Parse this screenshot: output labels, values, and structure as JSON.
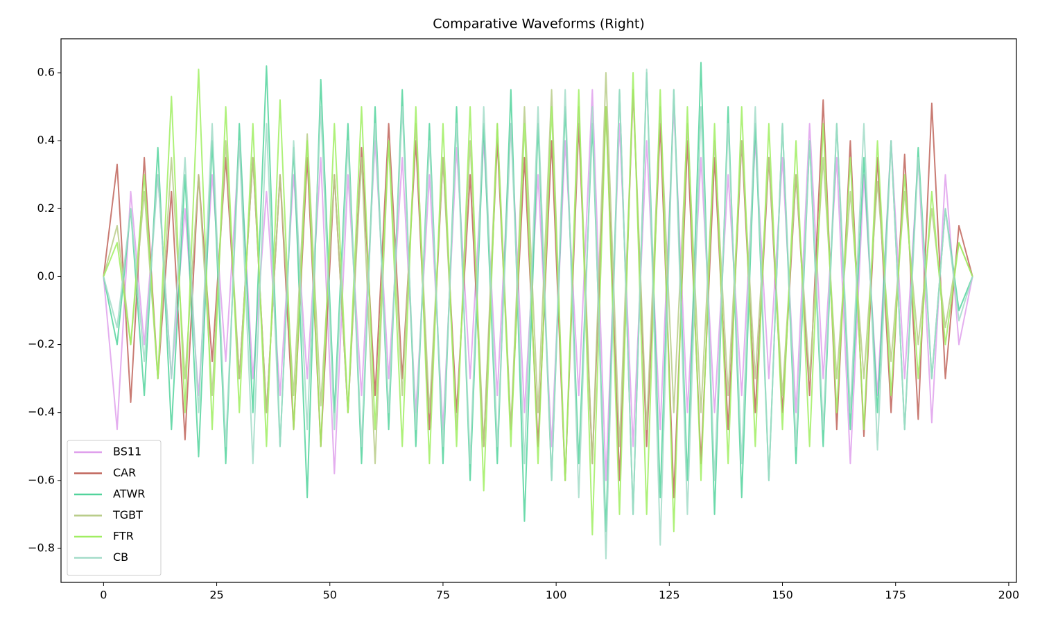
{
  "chart_data": {
    "type": "line",
    "title": "Comparative Waveforms (Right)",
    "x": [
      0,
      3,
      6,
      9,
      12,
      15,
      18,
      21,
      24,
      27,
      30,
      33,
      36,
      39,
      42,
      45,
      48,
      51,
      54,
      57,
      60,
      63,
      66,
      69,
      72,
      75,
      78,
      81,
      84,
      87,
      90,
      93,
      96,
      99,
      102,
      105,
      108,
      111,
      114,
      117,
      120,
      123,
      126,
      129,
      132,
      135,
      138,
      141,
      144,
      147,
      150,
      153,
      156,
      159,
      162,
      165,
      168,
      171,
      174,
      177,
      180,
      183,
      186,
      189,
      192
    ],
    "series": [
      {
        "name": "BS11",
        "color": "#dfa0ec",
        "values": [
          0,
          -0.45,
          0.25,
          -0.2,
          0.3,
          -0.3,
          0.2,
          -0.35,
          0.3,
          -0.25,
          0.4,
          -0.3,
          0.25,
          -0.35,
          0.3,
          -0.3,
          0.35,
          -0.58,
          0.3,
          -0.35,
          0.4,
          -0.3,
          0.35,
          -0.4,
          0.3,
          -0.45,
          0.38,
          -0.3,
          0.4,
          -0.35,
          0.45,
          -0.4,
          0.3,
          -0.5,
          0.4,
          -0.35,
          0.55,
          -0.6,
          0.45,
          -0.5,
          0.4,
          -0.45,
          0.5,
          -0.4,
          0.35,
          -0.4,
          0.3,
          -0.35,
          0.4,
          -0.3,
          0.35,
          -0.4,
          0.45,
          -0.3,
          0.35,
          -0.55,
          0.3,
          -0.35,
          0.4,
          -0.3,
          0.35,
          -0.43,
          0.3,
          -0.2,
          0
        ]
      },
      {
        "name": "CAR",
        "color": "#c0645a",
        "values": [
          0,
          0.33,
          -0.37,
          0.35,
          -0.3,
          0.25,
          -0.48,
          0.3,
          -0.25,
          0.35,
          -0.3,
          0.35,
          -0.4,
          0.3,
          -0.45,
          0.35,
          -0.5,
          0.3,
          -0.4,
          0.38,
          -0.35,
          0.45,
          -0.3,
          0.4,
          -0.45,
          0.35,
          -0.4,
          0.3,
          -0.5,
          0.4,
          -0.45,
          0.35,
          -0.5,
          0.4,
          -0.6,
          0.45,
          -0.55,
          0.5,
          -0.6,
          0.55,
          -0.5,
          0.45,
          -0.65,
          0.4,
          -0.55,
          0.35,
          -0.45,
          0.4,
          -0.4,
          0.35,
          -0.4,
          0.3,
          -0.35,
          0.52,
          -0.45,
          0.4,
          -0.47,
          0.35,
          -0.4,
          0.36,
          -0.42,
          0.51,
          -0.3,
          0.15,
          0
        ]
      },
      {
        "name": "ATWR",
        "color": "#52d39c",
        "values": [
          0,
          -0.2,
          0.2,
          -0.35,
          0.38,
          -0.45,
          0.3,
          -0.53,
          0.4,
          -0.55,
          0.45,
          -0.4,
          0.62,
          -0.5,
          0.38,
          -0.65,
          0.58,
          -0.4,
          0.45,
          -0.55,
          0.5,
          -0.45,
          0.55,
          -0.5,
          0.45,
          -0.55,
          0.5,
          -0.6,
          0.45,
          -0.55,
          0.55,
          -0.72,
          0.45,
          -0.6,
          0.5,
          -0.55,
          0.45,
          -0.75,
          0.55,
          -0.7,
          0.6,
          -0.65,
          0.55,
          -0.6,
          0.63,
          -0.7,
          0.5,
          -0.65,
          0.45,
          -0.6,
          0.45,
          -0.55,
          0.4,
          -0.5,
          0.45,
          -0.45,
          0.35,
          -0.4,
          0.4,
          -0.45,
          0.38,
          -0.3,
          0.2,
          -0.1,
          0
        ]
      },
      {
        "name": "TGBT",
        "color": "#b8cc88",
        "values": [
          0,
          0.15,
          -0.2,
          0.25,
          -0.3,
          0.35,
          -0.3,
          0.3,
          -0.35,
          0.4,
          -0.3,
          0.35,
          -0.4,
          0.3,
          -0.35,
          0.42,
          -0.38,
          0.3,
          -0.4,
          0.35,
          -0.55,
          0.4,
          -0.35,
          0.45,
          -0.4,
          0.35,
          -0.45,
          0.4,
          -0.5,
          0.45,
          -0.45,
          0.5,
          -0.4,
          0.55,
          -0.6,
          0.5,
          -0.55,
          0.6,
          -0.5,
          0.55,
          -0.45,
          0.5,
          -0.4,
          0.45,
          -0.4,
          0.4,
          -0.35,
          0.4,
          -0.3,
          0.35,
          -0.35,
          0.3,
          -0.3,
          0.35,
          -0.3,
          0.25,
          -0.3,
          0.28,
          -0.25,
          0.25,
          -0.2,
          0.2,
          -0.15,
          0.1,
          0
        ]
      },
      {
        "name": "FTR",
        "color": "#a0ee62",
        "values": [
          0,
          0.1,
          -0.2,
          0.3,
          -0.3,
          0.53,
          -0.4,
          0.61,
          -0.45,
          0.5,
          -0.4,
          0.45,
          -0.5,
          0.52,
          -0.45,
          0.4,
          -0.5,
          0.45,
          -0.4,
          0.5,
          -0.45,
          0.4,
          -0.5,
          0.5,
          -0.55,
          0.45,
          -0.5,
          0.5,
          -0.63,
          0.45,
          -0.5,
          0.45,
          -0.55,
          0.5,
          -0.6,
          0.55,
          -0.76,
          0.5,
          -0.7,
          0.6,
          -0.7,
          0.55,
          -0.75,
          0.5,
          -0.6,
          0.45,
          -0.55,
          0.5,
          -0.5,
          0.45,
          -0.45,
          0.4,
          -0.5,
          0.45,
          -0.4,
          0.35,
          -0.45,
          0.4,
          -0.35,
          0.3,
          -0.3,
          0.25,
          -0.2,
          0.1,
          0
        ]
      },
      {
        "name": "CB",
        "color": "#a2dcc8",
        "values": [
          0,
          -0.15,
          0.2,
          -0.25,
          0.3,
          -0.3,
          0.35,
          -0.4,
          0.45,
          -0.5,
          0.4,
          -0.55,
          0.45,
          -0.5,
          0.4,
          -0.45,
          0.5,
          -0.45,
          0.4,
          -0.5,
          0.45,
          -0.4,
          0.5,
          -0.45,
          0.4,
          -0.5,
          0.45,
          -0.55,
          0.5,
          -0.5,
          0.45,
          -0.55,
          0.5,
          -0.6,
          0.55,
          -0.65,
          0.5,
          -0.83,
          0.55,
          -0.7,
          0.61,
          -0.79,
          0.55,
          -0.7,
          0.5,
          -0.6,
          0.45,
          -0.55,
          0.5,
          -0.6,
          0.45,
          -0.5,
          0.4,
          -0.45,
          0.45,
          -0.4,
          0.45,
          -0.51,
          0.4,
          -0.45,
          0.35,
          -0.3,
          0.2,
          -0.13,
          0
        ]
      }
    ],
    "xlim": [
      -9.4,
      201.7
    ],
    "ylim": [
      -0.9,
      0.7
    ],
    "xticks": [
      0,
      25,
      50,
      75,
      100,
      125,
      150,
      175,
      200
    ],
    "yticks": [
      {
        "value": -0.8,
        "label": "−0.8"
      },
      {
        "value": -0.6,
        "label": "−0.6"
      },
      {
        "value": -0.4,
        "label": "−0.4"
      },
      {
        "value": -0.2,
        "label": "−0.2"
      },
      {
        "value": 0,
        "label": "0.0"
      },
      0.2,
      0.4,
      0.6
    ],
    "legend": "lower left"
  }
}
